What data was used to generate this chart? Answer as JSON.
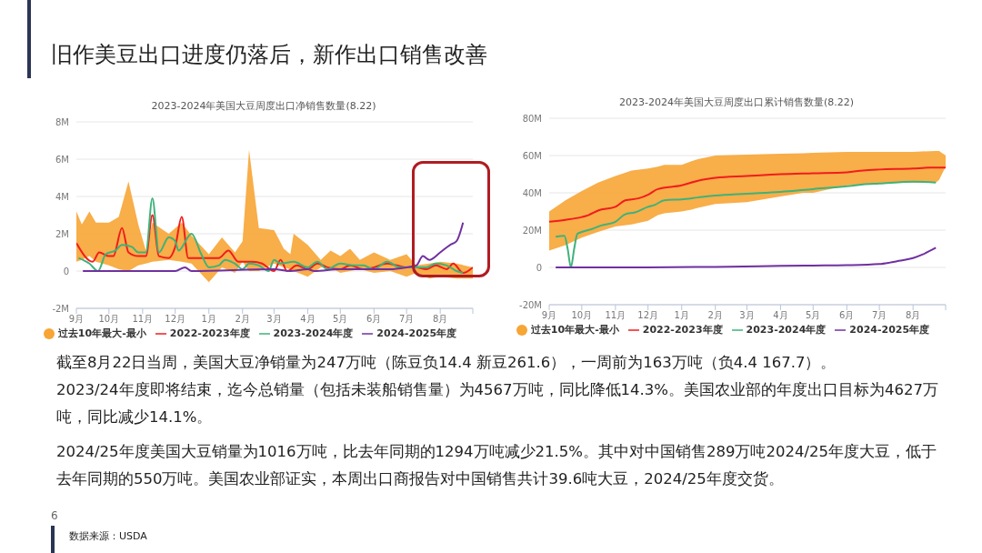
{
  "chart_data": [
    {
      "type": "line",
      "title": "2023-2024年美国大豆周度出口净销售数量(8.22)",
      "grid": "y",
      "legend": "bottom",
      "marker": "none",
      "line_style": "solid",
      "xlim": [
        "2023-09-01",
        "2024-08-31"
      ],
      "xticks": [
        {
          "value": "2023-09-01",
          "label": "9月"
        },
        {
          "value": "2023-10-01",
          "label": "10月"
        },
        {
          "value": "2023-11-01",
          "label": "11月"
        },
        {
          "value": "2023-12-01",
          "label": "12月"
        },
        {
          "value": "2024-01-01",
          "label": "1月"
        },
        {
          "value": "2024-02-01",
          "label": "2月"
        },
        {
          "value": "2024-03-01",
          "label": "3月"
        },
        {
          "value": "2024-04-01",
          "label": "4月"
        },
        {
          "value": "2024-05-01",
          "label": "5月"
        },
        {
          "value": "2024-06-01",
          "label": "6月"
        },
        {
          "value": "2024-07-01",
          "label": "7月"
        },
        {
          "value": "2024-08-01",
          "label": "8月"
        },
        {
          "value": "2024-08-31",
          "label": null
        }
      ],
      "ylim": [
        -2,
        8
      ],
      "yticks": [
        {
          "value": -2,
          "label": "-2M"
        },
        0,
        {
          "value": 2,
          "label": "2M"
        },
        {
          "value": 4,
          "label": "4M"
        },
        {
          "value": 6,
          "label": "6M"
        },
        {
          "value": 8,
          "label": "8M"
        }
      ],
      "series": [
        {
          "name": "过去10年最大-最小",
          "color": "#f7a535",
          "x": [
            "2023-09-01",
            "2023-09-06",
            "2023-09-13",
            "2023-09-19",
            "2023-10-01",
            "2023-10-10",
            "2023-10-19",
            "2023-10-28",
            "2023-11-04",
            "2023-11-10",
            "2023-11-25",
            "2023-12-07",
            "2023-12-16",
            "2024-01-01",
            "2024-01-13",
            "2024-01-25",
            "2024-02-01",
            "2024-02-07",
            "2024-02-16",
            "2024-03-01",
            "2024-03-10",
            "2024-03-16",
            "2024-03-19",
            "2024-04-01",
            "2024-04-13",
            "2024-04-22",
            "2024-05-01",
            "2024-05-10",
            "2024-05-19",
            "2024-06-01",
            "2024-06-16",
            "2024-07-01",
            "2024-07-10",
            "2024-07-22",
            "2024-08-01",
            "2024-08-16",
            "2024-08-31"
          ],
          "values": [
            null,
            null,
            null,
            null,
            null,
            null,
            null,
            null,
            null,
            null,
            null,
            null,
            null,
            null,
            null,
            null,
            null,
            null,
            null,
            null,
            null,
            null,
            null,
            null,
            null,
            null,
            null,
            null,
            null,
            null,
            null,
            null,
            null,
            null,
            null,
            null,
            null
          ],
          "upper": [
            3.2,
            2.5,
            3.2,
            2.6,
            2.6,
            2.9,
            4.8,
            2.5,
            1.1,
            2.6,
            2.0,
            2.6,
            1.9,
            0.9,
            1.8,
            1.0,
            1.6,
            6.5,
            2.3,
            2.2,
            1.2,
            0.9,
            2.0,
            1.4,
            0.6,
            1.1,
            0.8,
            1.2,
            0.6,
            1.0,
            0.6,
            0.9,
            0.3,
            0.4,
            0.5,
            0.4,
            0.2
          ],
          "lower": [
            0.5,
            0.6,
            0.8,
            0.5,
            0.3,
            0.1,
            0,
            0.3,
            0.4,
            0.5,
            0.6,
            0.5,
            0.4,
            -0.6,
            0.2,
            -0.1,
            0.5,
            0,
            0,
            0.4,
            0.2,
            0.1,
            0,
            -0.3,
            0.2,
            0.2,
            -0.1,
            0,
            0.1,
            -0.1,
            0,
            -0.3,
            -0.1,
            -0.4,
            -0.3,
            -0.4,
            -0.4
          ]
        },
        {
          "name": "2022-2023年度",
          "color": "#f01d1d",
          "x": [
            "2023-09-01",
            "2023-09-16",
            "2023-09-22",
            "2023-10-01",
            "2023-10-05",
            "2023-10-13",
            "2023-10-19",
            "2023-10-28",
            "2023-11-04",
            "2023-11-10",
            "2023-11-16",
            "2023-11-25",
            "2023-12-01",
            "2023-12-07",
            "2023-12-13",
            "2024-01-01",
            "2024-01-10",
            "2024-01-19",
            "2024-01-28",
            "2024-02-10",
            "2024-02-19",
            "2024-03-01",
            "2024-03-07",
            "2024-03-13",
            "2024-03-22",
            "2024-04-01",
            "2024-04-10",
            "2024-04-19",
            "2024-05-01",
            "2024-05-10",
            "2024-05-22",
            "2024-06-01",
            "2024-06-13",
            "2024-06-22",
            "2024-07-01",
            "2024-07-10",
            "2024-07-19",
            "2024-07-28",
            "2024-08-07",
            "2024-08-13",
            "2024-08-22",
            "2024-08-31"
          ],
          "values": [
            1.5,
            0.5,
            1.0,
            0.8,
            0.8,
            2.3,
            1.0,
            0.8,
            0.8,
            3.0,
            0.8,
            0.7,
            1.3,
            2.9,
            0.7,
            0.7,
            0.7,
            1.1,
            0.5,
            0.5,
            0.4,
            0,
            0.6,
            0,
            0.3,
            0.1,
            0.4,
            0.2,
            0.1,
            0.3,
            0.1,
            0.2,
            0.4,
            0.3,
            0.2,
            0.2,
            0.1,
            0.3,
            0.1,
            0.4,
            -0.1,
            0.2
          ]
        },
        {
          "name": "2023-2024年度",
          "color": "#3fb27a",
          "x": [
            "2023-09-03",
            "2023-09-13",
            "2023-09-21",
            "2023-09-28",
            "2023-10-07",
            "2023-10-13",
            "2023-10-22",
            "2023-10-28",
            "2023-11-04",
            "2023-11-10",
            "2023-11-16",
            "2023-11-25",
            "2023-12-01",
            "2023-12-04",
            "2023-12-16",
            "2023-12-25",
            "2024-01-01",
            "2024-01-10",
            "2024-01-16",
            "2024-01-25",
            "2024-02-01",
            "2024-02-07",
            "2024-02-16",
            "2024-02-25",
            "2024-03-01",
            "2024-03-07",
            "2024-03-19",
            "2024-04-01",
            "2024-04-10",
            "2024-04-19",
            "2024-05-01",
            "2024-05-13",
            "2024-05-22",
            "2024-06-01",
            "2024-06-13",
            "2024-06-25",
            "2024-07-07",
            "2024-07-19",
            "2024-07-28",
            "2024-08-07",
            "2024-08-16",
            "2024-08-22"
          ],
          "values": [
            0.7,
            0.4,
            0,
            0.9,
            1.1,
            1.4,
            1.3,
            1.0,
            1.0,
            3.9,
            1.0,
            1.8,
            1.6,
            1.1,
            2.0,
            0.9,
            0.2,
            0.3,
            0.6,
            0.4,
            0.1,
            0.4,
            0.3,
            0,
            0.6,
            0.4,
            0.5,
            0.2,
            0.5,
            0.1,
            0.4,
            0.3,
            0.3,
            0.1,
            0.5,
            0.2,
            0.2,
            0.2,
            0.4,
            0.3,
            0,
            -0.1
          ]
        },
        {
          "name": "2024-2025年度",
          "color": "#7030a0",
          "x": [
            "2023-09-07",
            "2023-12-01",
            "2023-12-10",
            "2023-12-16",
            "2024-03-01",
            "2024-03-16",
            "2024-04-01",
            "2024-04-07",
            "2024-05-01",
            "2024-06-01",
            "2024-06-16",
            "2024-07-01",
            "2024-07-10",
            "2024-07-16",
            "2024-07-22",
            "2024-08-01",
            "2024-08-10",
            "2024-08-16",
            "2024-08-22"
          ],
          "values": [
            0,
            0,
            0.2,
            0,
            0.1,
            0,
            0.1,
            0,
            0.1,
            0.1,
            0.1,
            0.2,
            0.3,
            0.8,
            0.6,
            1.0,
            1.4,
            1.6,
            2.6
          ]
        }
      ]
    },
    {
      "type": "line",
      "title": "2023-2024年美国大豆周度出口累计销售数量(8.22)",
      "grid": "y",
      "legend": "bottom",
      "marker": "none",
      "line_style": "solid",
      "xlim": [
        "2023-09-01",
        "2024-08-31"
      ],
      "xticks": [
        {
          "value": "2023-09-01",
          "label": "9月"
        },
        {
          "value": "2023-10-01",
          "label": "10月"
        },
        {
          "value": "2023-11-01",
          "label": "11月"
        },
        {
          "value": "2023-12-01",
          "label": "12月"
        },
        {
          "value": "2024-01-01",
          "label": "1月"
        },
        {
          "value": "2024-02-01",
          "label": "2月"
        },
        {
          "value": "2024-03-01",
          "label": "3月"
        },
        {
          "value": "2024-04-01",
          "label": "4月"
        },
        {
          "value": "2024-05-01",
          "label": "5月"
        },
        {
          "value": "2024-06-01",
          "label": "6月"
        },
        {
          "value": "2024-07-01",
          "label": "7月"
        },
        {
          "value": "2024-08-01",
          "label": "8月"
        },
        {
          "value": "2024-08-31",
          "label": null
        }
      ],
      "ylim": [
        -20,
        80
      ],
      "yticks": [
        {
          "value": -20,
          "label": "-20M"
        },
        0,
        {
          "value": 20,
          "label": "20M"
        },
        {
          "value": 40,
          "label": "40M"
        },
        {
          "value": 60,
          "label": "60M"
        },
        {
          "value": 80,
          "label": "80M"
        }
      ],
      "series": [
        {
          "name": "过去10年最大-最小",
          "color": "#f7a535",
          "x": [
            "2023-09-01",
            "2023-09-16",
            "2023-10-01",
            "2023-10-16",
            "2023-11-01",
            "2023-11-16",
            "2023-12-01",
            "2023-12-10",
            "2023-12-16",
            "2024-01-01",
            "2024-01-10",
            "2024-01-16",
            "2024-02-01",
            "2024-03-01",
            "2024-04-01",
            "2024-04-22",
            "2024-05-01",
            "2024-05-16",
            "2024-06-01",
            "2024-07-01",
            "2024-08-01",
            "2024-08-22",
            "2024-08-25",
            "2024-08-31"
          ],
          "values": [
            null,
            null,
            null,
            null,
            null,
            null,
            null,
            null,
            null,
            null,
            null,
            null,
            null,
            null,
            null,
            null,
            null,
            null,
            null,
            null,
            null,
            null,
            null,
            null
          ],
          "upper": [
            30,
            36,
            41,
            45.5,
            49,
            52,
            53,
            54,
            55,
            55,
            57,
            58,
            60,
            60.5,
            61,
            61.2,
            61.5,
            61.7,
            62,
            62,
            62,
            62.5,
            62.5,
            60
          ],
          "lower": [
            9,
            12,
            16,
            19,
            22,
            23,
            25,
            28,
            29,
            30,
            31,
            32,
            34,
            35,
            38,
            40,
            40,
            42,
            44,
            45,
            45.5,
            45.5,
            47,
            54
          ]
        },
        {
          "name": "2022-2023年度",
          "color": "#f01d1d",
          "x": [
            "2023-09-01",
            "2023-09-16",
            "2023-10-01",
            "2023-10-07",
            "2023-10-16",
            "2023-11-01",
            "2023-11-10",
            "2023-11-22",
            "2023-12-01",
            "2023-12-10",
            "2024-01-01",
            "2024-01-16",
            "2024-02-01",
            "2024-03-01",
            "2024-04-01",
            "2024-05-01",
            "2024-06-01",
            "2024-06-16",
            "2024-07-01",
            "2024-08-01",
            "2024-08-16",
            "2024-08-31"
          ],
          "values": [
            24.5,
            25.5,
            27,
            28,
            30.5,
            32.5,
            36,
            37,
            39,
            42,
            44,
            46.5,
            48,
            49,
            50,
            50.5,
            51,
            52,
            52.5,
            53,
            53.5,
            53.5
          ]
        },
        {
          "name": "2023-2024年度",
          "color": "#3fb27a",
          "x": [
            "2023-09-07",
            "2023-09-15",
            "2023-09-18",
            "2023-09-21",
            "2023-09-24",
            "2023-09-27",
            "2023-10-01",
            "2023-10-10",
            "2023-10-19",
            "2023-11-01",
            "2023-11-10",
            "2023-11-19",
            "2023-12-01",
            "2023-12-07",
            "2023-12-16",
            "2024-01-01",
            "2024-01-16",
            "2024-02-01",
            "2024-03-01",
            "2024-04-01",
            "2024-05-01",
            "2024-06-01",
            "2024-06-16",
            "2024-07-01",
            "2024-08-01",
            "2024-08-22"
          ],
          "values": [
            16.5,
            17,
            10,
            0,
            10,
            18,
            19,
            20.5,
            22.5,
            24.5,
            28.5,
            29.5,
            32.5,
            33.5,
            36,
            36.5,
            37.5,
            38.5,
            39.5,
            40.5,
            42,
            43.5,
            44.5,
            45,
            46,
            45.5
          ]
        },
        {
          "name": "2024-2025年度",
          "color": "#7030a0",
          "x": [
            "2023-09-07",
            "2023-12-01",
            "2024-02-01",
            "2024-04-01",
            "2024-05-01",
            "2024-06-01",
            "2024-07-01",
            "2024-07-10",
            "2024-07-19",
            "2024-08-01",
            "2024-08-10",
            "2024-08-22"
          ],
          "values": [
            0,
            0,
            0.3,
            0.8,
            1.0,
            1.2,
            1.8,
            2.5,
            3.5,
            5,
            7,
            10.5
          ]
        }
      ]
    },
    {
      "type": "other",
      "title": "旧作美豆出口进度仍落后，新作出口销售改善",
      "annotations": [
        "截至8月22日当周，美国大豆净销量为247万吨（陈豆负14.4 新豆261.6），一周前为163万吨（负4.4 167.7）。",
        "2023/24年度即将结束，迄今总销量（包括未装船销售量）为4567万吨，同比降低14.3%。美国农业部的年度出口目标为4627万吨，同比减少14.1%。",
        "2024/25年度美国大豆销量为1016万吨，比去年同期的1294万吨减少21.5%。其中对中国销售289万吨2024/25年度大豆，低于去年同期的550万吨。美国农业部证实，本周出口商报告对中国销售共计39.6吨大豆，2024/25年度交货。",
        "6",
        "数据来源：USDA"
      ]
    }
  ]
}
